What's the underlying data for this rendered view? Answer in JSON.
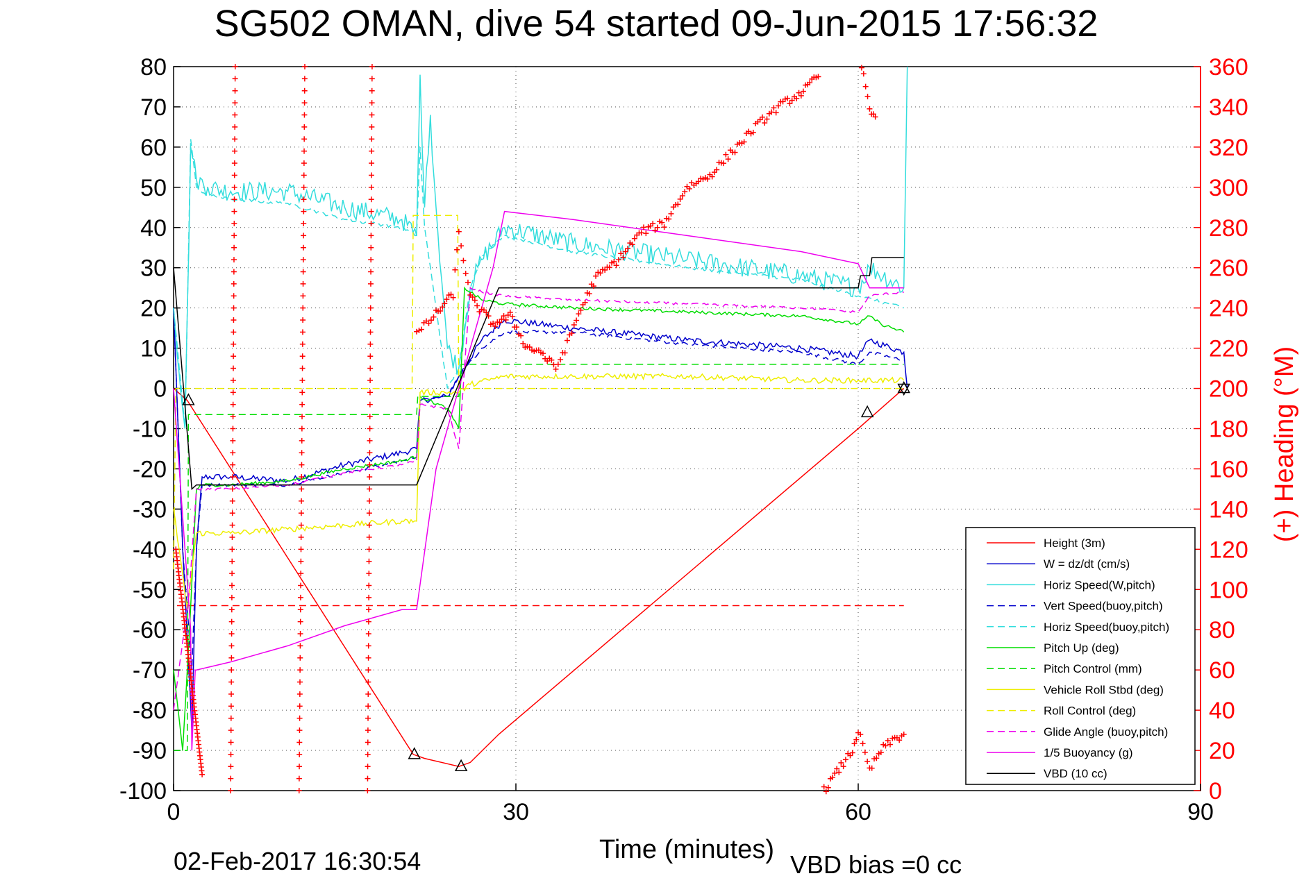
{
  "title": "SG502 OMAN, dive 54 started 09-Jun-2015 17:56:32",
  "footer": {
    "timestamp": "02-Feb-2017 16:30:54",
    "vbd_bias": "VBD bias =0 cc"
  },
  "chart_data": {
    "type": "line",
    "xlabel": "Time (minutes)",
    "ylabel": "",
    "y2label": "(+) Heading (°M)",
    "xlim": [
      0,
      90
    ],
    "ylim": [
      -100,
      80
    ],
    "y2lim": [
      0,
      360
    ],
    "xticks": [
      0,
      30,
      60,
      90
    ],
    "yticks": [
      80,
      70,
      60,
      50,
      40,
      30,
      20,
      10,
      0,
      -10,
      -20,
      -30,
      -40,
      -50,
      -60,
      -70,
      -80,
      -90,
      -100
    ],
    "y2ticks": [
      360,
      340,
      320,
      300,
      280,
      260,
      240,
      220,
      200,
      180,
      160,
      140,
      120,
      100,
      80,
      60,
      40,
      20,
      0
    ],
    "grid": true,
    "legend_position": "bottom-right",
    "colors": {
      "height": "#ff0000",
      "w": "#0000cc",
      "horiz": "#33dddd",
      "pitch": "#00dd00",
      "roll": "#eeee00",
      "buoy": "#ee00ee",
      "vbd": "#000000",
      "heading": "#ff0000"
    },
    "series": [
      {
        "name": "Height (3m)",
        "color": "#ff0000",
        "dash": "",
        "x": [
          0,
          1.2,
          21,
          22,
          25,
          26,
          28.5,
          60,
          64
        ],
        "y": [
          0,
          -3,
          -91,
          -92,
          -94,
          -93,
          -86,
          -10,
          0
        ]
      },
      {
        "name": "W = dz/dt (cm/s)",
        "color": "#0000cc",
        "dash": "",
        "noise": 0.8,
        "x": [
          0,
          0.8,
          1.6,
          2,
          2.5,
          5,
          10,
          15,
          20,
          21.3,
          21.6,
          24,
          25,
          27,
          29,
          35,
          45,
          55,
          60,
          61,
          64,
          64.3
        ],
        "y": [
          20,
          -40,
          -85,
          -40,
          -22,
          -22,
          -23,
          -19,
          -16,
          -15,
          -3,
          -2,
          3,
          12,
          17,
          15,
          12,
          10,
          8,
          12,
          9,
          0
        ]
      },
      {
        "name": "Horiz Speed(W,pitch)",
        "color": "#33dddd",
        "dash": "",
        "noise": 2.5,
        "x": [
          0,
          1,
          1.5,
          2,
          3,
          5,
          10,
          15,
          20,
          21.3,
          21.6,
          22,
          22.5,
          23,
          24,
          25,
          26,
          27,
          29,
          35,
          45,
          55,
          60,
          61,
          64,
          64.3
        ],
        "y": [
          20,
          -10,
          60,
          52,
          50,
          49,
          49,
          45,
          42,
          38,
          78,
          45,
          68,
          45,
          10,
          5,
          25,
          32,
          40,
          36,
          32,
          28,
          25,
          30,
          25,
          80
        ]
      },
      {
        "name": "Vert Speed(buoy,pitch)",
        "color": "#0000cc",
        "dash": "10,6",
        "noise": 0.4,
        "x": [
          0,
          0.8,
          1.6,
          2,
          2.5,
          5,
          10,
          15,
          20,
          21.3,
          21.6,
          24,
          25,
          27,
          29,
          35,
          45,
          55,
          60,
          61,
          64
        ],
        "y": [
          20,
          -40,
          -70,
          -40,
          -24,
          -24,
          -24,
          -21,
          -18,
          -17,
          -3,
          -2,
          3,
          10,
          14,
          14,
          11,
          9,
          6,
          9,
          7
        ]
      },
      {
        "name": "Horiz Speed(buoy,pitch)",
        "color": "#33dddd",
        "dash": "10,6",
        "noise": 0.4,
        "x": [
          0,
          1,
          1.5,
          2,
          3,
          5,
          10,
          15,
          20,
          21.3,
          21.6,
          22,
          23,
          24,
          25,
          26,
          27,
          29,
          35,
          45,
          55,
          60,
          64
        ],
        "y": [
          20,
          -10,
          62,
          50,
          48,
          47,
          46,
          42,
          40,
          38,
          60,
          40,
          20,
          0,
          5,
          25,
          33,
          38,
          34,
          30,
          27,
          23,
          20
        ]
      },
      {
        "name": "Pitch Up (deg)",
        "color": "#00dd00",
        "dash": "",
        "noise": 0.4,
        "x": [
          0,
          0.8,
          1.4,
          2,
          2.5,
          5,
          10,
          15,
          20,
          21.3,
          21.6,
          24,
          25,
          25.5,
          27,
          29,
          35,
          45,
          55,
          60,
          61,
          62,
          64
        ],
        "y": [
          -70,
          -90,
          -60,
          -25,
          -24,
          -24,
          -23,
          -20,
          -18,
          -17,
          -2,
          -5,
          -10,
          25,
          22,
          21,
          20,
          19,
          18,
          16,
          18,
          16,
          14
        ]
      },
      {
        "name": "Pitch Control (mm)",
        "color": "#00dd00",
        "dash": "10,6",
        "noise": 0,
        "x": [
          0,
          1.2,
          1.3,
          21.3,
          21.4,
          25,
          25.2,
          64
        ],
        "y": [
          -90,
          -90,
          -6.5,
          -6.5,
          -2,
          -2,
          6,
          6
        ]
      },
      {
        "name": "Vehicle Roll Stbd (deg)",
        "color": "#eeee00",
        "dash": "",
        "noise": 0.7,
        "x": [
          0,
          1.2,
          2,
          5,
          10,
          15,
          20,
          21.3,
          21.6,
          25,
          26,
          29,
          35,
          45,
          55,
          60,
          64
        ],
        "y": [
          -30,
          -55,
          -36,
          -36,
          -35,
          -34,
          -33,
          -33,
          -1,
          -1,
          1,
          3,
          3,
          3,
          2,
          2,
          2
        ]
      },
      {
        "name": "Roll Control (deg)",
        "color": "#eeee00",
        "dash": "10,6",
        "noise": 0,
        "x": [
          0,
          0.2,
          20.9,
          21.0,
          21.1,
          24.9,
          25.0,
          64
        ],
        "y": [
          -45,
          0,
          0,
          43,
          43,
          43,
          0,
          0
        ]
      },
      {
        "name": "Glide Angle (buoy,pitch)",
        "color": "#ee00ee",
        "dash": "10,6",
        "noise": 0.3,
        "x": [
          0,
          1.4,
          2,
          5,
          10,
          15,
          20,
          21.3,
          21.6,
          24,
          25,
          26,
          27,
          29,
          35,
          45,
          55,
          60,
          61,
          64
        ],
        "y": [
          -80,
          -50,
          -25,
          -25,
          -24,
          -21,
          -19,
          -18,
          -4,
          -5,
          -15,
          25,
          24,
          23,
          22,
          21,
          20,
          19,
          23,
          24
        ]
      },
      {
        "name": "1/5 Buoyancy (g)",
        "color": "#ee00ee",
        "dash": "",
        "noise": 0,
        "x": [
          0,
          1.5,
          1.6,
          1.9,
          2,
          5,
          10,
          15,
          20,
          21.3,
          23,
          25,
          28,
          29,
          35,
          45,
          55,
          60,
          61,
          64
        ],
        "y": [
          0,
          -60,
          -90,
          -70,
          -70,
          -68,
          -64,
          -59,
          -55,
          -55,
          -20,
          0,
          30,
          44,
          42,
          38,
          34,
          31,
          25,
          25
        ]
      },
      {
        "name": "VBD (10 cc)",
        "color": "#000000",
        "dash": "",
        "noise": 0,
        "x": [
          0,
          1.6,
          2,
          21.3,
          28.5,
          60,
          60.2,
          61,
          61.2,
          64
        ],
        "y": [
          30,
          -25,
          -24,
          -24,
          25,
          25,
          28,
          28,
          32.5,
          32.5
        ]
      }
    ],
    "heading": {
      "name": "(+) Heading",
      "color": "#ff0000",
      "marker": "+",
      "sweeps": [
        {
          "x": [
            0.2,
            2.5
          ],
          "y": [
            120,
            8
          ]
        },
        {
          "x": [
            5.0,
            5.4
          ],
          "y": [
            0,
            360
          ]
        },
        {
          "x": [
            11.0,
            11.5
          ],
          "y": [
            0,
            360
          ]
        },
        {
          "x": [
            17.0,
            17.4
          ],
          "y": [
            0,
            360
          ]
        }
      ],
      "segments": [
        {
          "x": [
            21.3,
            23,
            24.5,
            25,
            26,
            28,
            29.5,
            31,
            32,
            33.5,
            34.5,
            35.5,
            37,
            39,
            41,
            43,
            45,
            47,
            49,
            51,
            53,
            55,
            56.5
          ],
          "y": [
            227,
            237,
            247,
            278,
            245,
            232,
            236,
            220,
            219,
            210,
            222,
            237,
            255,
            264,
            278,
            282,
            300,
            306,
            318,
            330,
            340,
            347,
            355
          ]
        },
        {
          "x": [
            60.3,
            61,
            61.5
          ],
          "y": [
            360,
            340,
            335
          ]
        },
        {
          "x": [
            57,
            58.5,
            59.5,
            60,
            61,
            62,
            63,
            64
          ],
          "y": [
            0,
            12,
            20,
            30,
            10,
            20,
            25,
            28
          ]
        }
      ]
    },
    "markers": {
      "triangles": [
        [
          1.3,
          -3
        ],
        [
          21.1,
          -91
        ],
        [
          25.2,
          -94
        ],
        [
          60.8,
          -6
        ]
      ],
      "star": [
        [
          64,
          0
        ]
      ]
    },
    "dashed_line": {
      "color": "#ff0000",
      "y": -54,
      "x": [
        0.3,
        64
      ]
    }
  }
}
